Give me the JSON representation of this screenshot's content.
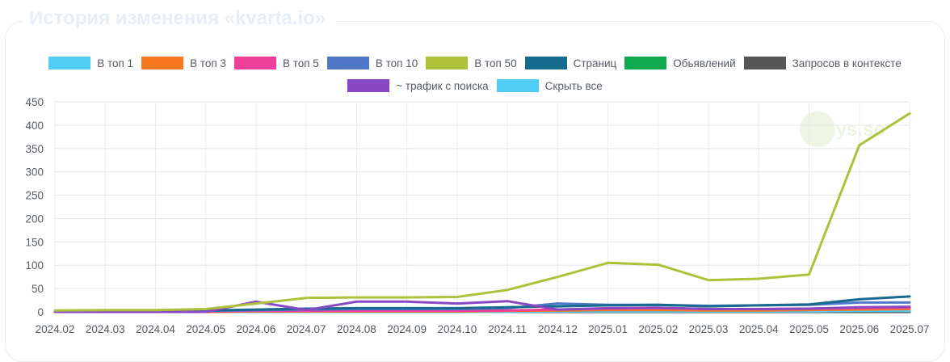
{
  "header": {
    "title": "История изменения «kvarta.io»"
  },
  "watermark": {
    "text": "keys.so"
  },
  "chart_data": {
    "type": "line",
    "x": [
      "2024.02",
      "2024.03",
      "2024.04",
      "2024.05",
      "2024.06",
      "2024.07",
      "2024.08",
      "2024.09",
      "2024.10",
      "2024.11",
      "2024.12",
      "2025.01",
      "2025.02",
      "2025.03",
      "2025.04",
      "2025.05",
      "2025.06",
      "2025.07"
    ],
    "ylim": [
      0,
      450
    ],
    "yticks": [
      0,
      50,
      100,
      150,
      200,
      250,
      300,
      350,
      400,
      450
    ],
    "grid": true,
    "legend": "top",
    "series": [
      {
        "name": "В топ 1",
        "color": "#4fcdf4",
        "values": [
          0,
          0,
          0,
          0,
          0,
          0,
          0,
          0,
          0,
          0,
          1,
          1,
          1,
          1,
          1,
          1,
          2,
          2
        ]
      },
      {
        "name": "В топ 3",
        "color": "#f7781f",
        "values": [
          0,
          0,
          0,
          0,
          1,
          1,
          1,
          1,
          1,
          2,
          3,
          4,
          4,
          3,
          3,
          4,
          5,
          6
        ]
      },
      {
        "name": "В топ 5",
        "color": "#f03e9b",
        "values": [
          1,
          1,
          1,
          1,
          2,
          2,
          2,
          2,
          2,
          3,
          5,
          7,
          8,
          6,
          6,
          7,
          8,
          9
        ]
      },
      {
        "name": "В топ 10",
        "color": "#4f78c8",
        "values": [
          1,
          1,
          1,
          2,
          4,
          5,
          6,
          6,
          6,
          8,
          18,
          15,
          15,
          13,
          14,
          15,
          20,
          20
        ]
      },
      {
        "name": "В топ 50",
        "color": "#adc23a",
        "values": [
          3,
          4,
          4,
          6,
          18,
          30,
          31,
          31,
          32,
          47,
          75,
          105,
          101,
          68,
          71,
          80,
          357,
          425
        ]
      },
      {
        "name": "Страниц",
        "color": "#17698e",
        "values": [
          2,
          2,
          2,
          3,
          5,
          7,
          8,
          8,
          8,
          10,
          12,
          14,
          15,
          12,
          14,
          16,
          27,
          33
        ]
      },
      {
        "name": "Обьявлений",
        "color": "#0faa4e",
        "values": [
          0,
          0,
          0,
          0,
          0,
          0,
          0,
          0,
          0,
          0,
          0,
          0,
          0,
          0,
          0,
          0,
          0,
          0
        ]
      },
      {
        "name": "Запросов в контексте",
        "color": "#555555",
        "values": [
          0,
          0,
          0,
          0,
          0,
          0,
          0,
          0,
          0,
          0,
          0,
          0,
          0,
          0,
          0,
          0,
          0,
          0
        ]
      },
      {
        "name": "~ трафик с поиска",
        "color": "#8848c4",
        "values": [
          0,
          0,
          0,
          0,
          22,
          4,
          22,
          22,
          18,
          23,
          5,
          8,
          9,
          6,
          6,
          7,
          10,
          11
        ]
      }
    ],
    "legend_extra": {
      "label": "Скрыть все",
      "color": "#4fcdf4"
    }
  }
}
